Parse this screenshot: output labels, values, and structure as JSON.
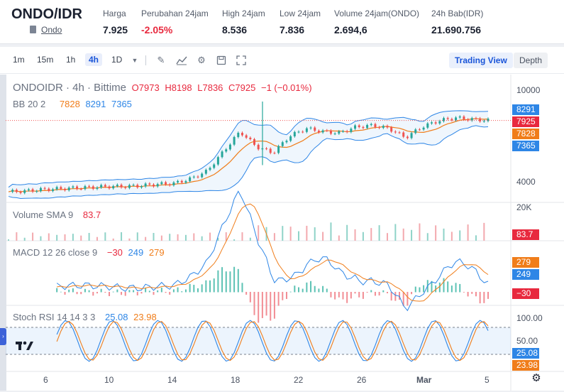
{
  "header": {
    "pair": "ONDO/IDR",
    "sub_label": "Ondo",
    "stats": [
      {
        "label": "Harga",
        "value": "7.925",
        "negative": false
      },
      {
        "label": "Perubahan 24jam",
        "value": "-2.05%",
        "negative": true
      },
      {
        "label": "High 24jam",
        "value": "8.536",
        "negative": false
      },
      {
        "label": "Low 24jam",
        "value": "7.836",
        "negative": false
      },
      {
        "label": "Volume 24jam(ONDO)",
        "value": "2.694,6",
        "negative": false
      },
      {
        "label": "24h Bab(IDR)",
        "value": "21.690.756",
        "negative": false
      }
    ]
  },
  "toolbar": {
    "timeframes": [
      "1m",
      "15m",
      "1h",
      "4h"
    ],
    "active_timeframe": "4h",
    "interval_select": "1D",
    "trading_view_label": "Trading View",
    "depth_label": "Depth"
  },
  "main_legend": {
    "symbol": "ONDOIDR · 4h · Bittime",
    "o": "O7973",
    "h": "H8198",
    "l": "L7836",
    "c": "C7925",
    "chg": "−1 (−0.01%)"
  },
  "bb_legend": {
    "name": "BB 20 2",
    "mid": "7828",
    "upper": "8291",
    "lower": "7365"
  },
  "volume_legend": {
    "name": "Volume SMA 9",
    "value": "83.7"
  },
  "macd_legend": {
    "name": "MACD 12 26 close 9",
    "hist": "−30",
    "macd": "249",
    "signal": "279"
  },
  "stoch_legend": {
    "name": "Stoch RSI 14 14 3 3",
    "k": "25.08",
    "d": "23.98"
  },
  "price_scale": [
    "10000",
    "4000"
  ],
  "price_tags": [
    {
      "value": "8291",
      "color": "#2e86e6"
    },
    {
      "value": "7925",
      "color": "#e8293e"
    },
    {
      "value": "7828",
      "color": "#f07d1a"
    },
    {
      "value": "7365",
      "color": "#2e86e6"
    }
  ],
  "volume_scale": "20K",
  "volume_tag": "83.7",
  "macd_tags": [
    "279",
    "249",
    "−30"
  ],
  "stoch_scale": [
    "100.00",
    "50.00"
  ],
  "stoch_tags": [
    "25.08",
    "23.98"
  ],
  "x_axis": [
    "6",
    "10",
    "14",
    "18",
    "22",
    "26",
    "Mar",
    "5"
  ],
  "colors": {
    "up": "#26a69a",
    "down": "#ef5350",
    "bb": "#2e86e6",
    "basis": "#f07d1a",
    "accent": "#1a55d9"
  },
  "chart_data": {
    "type": "line",
    "price_scale_labels": [
      10000,
      4000
    ],
    "price_close_approx": [
      3250,
      3300,
      3400,
      3450,
      3500,
      3550,
      3600,
      3600,
      3650,
      3750,
      3800,
      4100,
      4600,
      5900,
      7200,
      6200,
      5800,
      6900,
      7400,
      7200,
      7100,
      7500,
      7600,
      7400,
      6800,
      7500,
      7900,
      8100,
      8000,
      7925
    ],
    "volume_sma": 83.7,
    "macd": {
      "macd": 249,
      "signal": 279,
      "histogram": -30
    },
    "stoch_rsi": {
      "k": 25.08,
      "d": 23.98
    }
  }
}
